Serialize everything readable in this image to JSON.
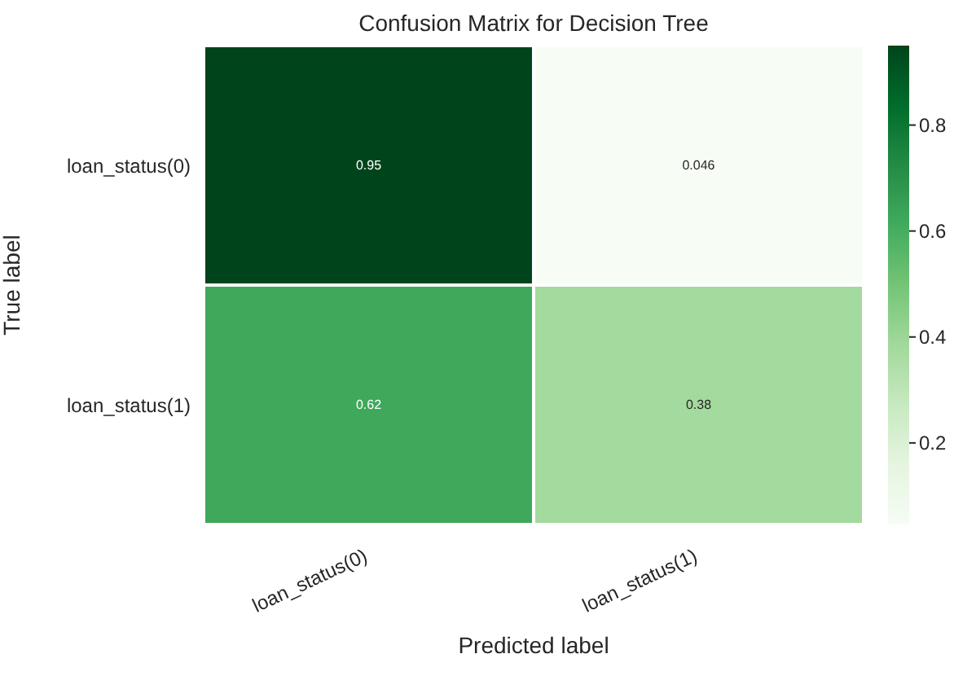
{
  "chart_data": {
    "type": "heatmap",
    "title": "Confusion Matrix for Decision Tree",
    "xlabel": "Predicted label",
    "ylabel": "True label",
    "categories": [
      "loan_status(0)",
      "loan_status(1)"
    ],
    "y_categories": [
      "loan_status(0)",
      "loan_status(1)"
    ],
    "cells": [
      [
        0.95,
        0.046
      ],
      [
        0.62,
        0.38
      ]
    ],
    "data_labels": true,
    "clim": [
      0.046,
      0.95
    ],
    "cticks": [
      0.2,
      0.4,
      0.6,
      0.8
    ]
  }
}
